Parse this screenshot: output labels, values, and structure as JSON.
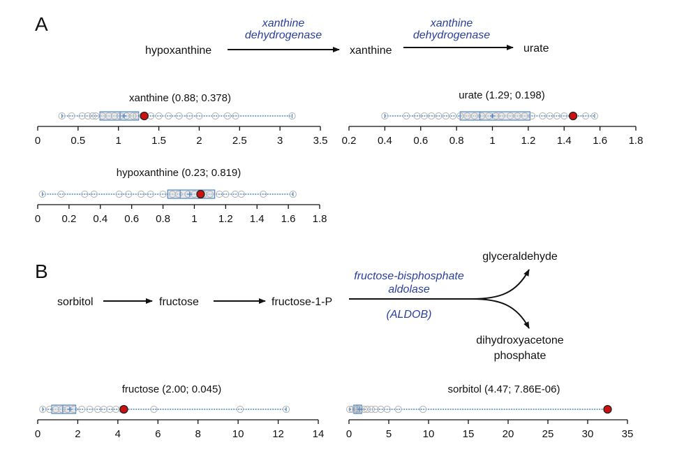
{
  "panels": {
    "A": {
      "label": "A",
      "pathway": {
        "nodes": [
          "hypoxanthine",
          "xanthine",
          "urate"
        ],
        "enzymes": [
          {
            "line1": "xanthine",
            "line2": "dehydrogenase"
          },
          {
            "line1": "xanthine",
            "line2": "dehydrogenase"
          }
        ]
      }
    },
    "B": {
      "label": "B",
      "pathway": {
        "nodes": [
          "sorbitol",
          "fructose",
          "fructose-1-P"
        ],
        "enzyme": {
          "line1": "fructose-bisphosphate",
          "line2": "aldolase",
          "line3": "(ALDOB)"
        },
        "products": [
          {
            "line1": "glyceraldehyde",
            "line2": ""
          },
          {
            "line1": "dihydroxyacetone",
            "line2": "phosphate"
          }
        ]
      }
    }
  },
  "colors": {
    "axis": "#111111",
    "box": "#4a86c8",
    "box_fill": "#d9d9d9",
    "points": "#b8b8b8",
    "highlight": "#cc1111"
  },
  "chart_data": [
    {
      "type": "box",
      "title": "xanthine (0.88; 0.378)",
      "xlim": [
        0,
        3.5
      ],
      "ticks": [
        0,
        0.5,
        1,
        1.5,
        2,
        2.5,
        3,
        3.5
      ],
      "tick_labels": [
        "0",
        "0.5",
        "1",
        "1.5",
        "2",
        "2.5",
        "3",
        "3.5"
      ],
      "whisker_min": 0.3,
      "q1": 0.77,
      "median": 1.02,
      "mean": 1.07,
      "q3": 1.25,
      "whisker_max": 3.15,
      "points": [
        0.3,
        0.42,
        0.55,
        0.62,
        0.68,
        0.72,
        0.8,
        0.88,
        0.95,
        1.02,
        1.1,
        1.18,
        1.22,
        1.3,
        1.4,
        1.5,
        1.62,
        1.75,
        1.88,
        2.0,
        2.2,
        2.35,
        2.45,
        3.15
      ],
      "highlight": 1.32
    },
    {
      "type": "box",
      "title": "urate (1.29; 0.198)",
      "xlim": [
        0.2,
        1.8
      ],
      "ticks": [
        0.2,
        0.4,
        0.6,
        0.8,
        1.0,
        1.2,
        1.4,
        1.6,
        1.8
      ],
      "tick_labels": [
        "0.2",
        "0.4",
        "0.6",
        "0.8",
        "1",
        "1.2",
        "1.4",
        "1.6",
        "1.8"
      ],
      "whisker_min": 0.4,
      "q1": 0.82,
      "median": 0.93,
      "mean": 1.0,
      "q3": 1.21,
      "whisker_max": 1.57,
      "points": [
        0.4,
        0.52,
        0.58,
        0.62,
        0.66,
        0.7,
        0.74,
        0.78,
        0.82,
        0.86,
        0.9,
        0.94,
        0.98,
        1.02,
        1.05,
        1.1,
        1.14,
        1.18,
        1.22,
        1.28,
        1.32,
        1.36,
        1.4,
        1.52,
        1.57
      ],
      "highlight": 1.45
    },
    {
      "type": "box",
      "title": "hypoxanthine (0.23; 0.819)",
      "xlim": [
        0,
        1.8
      ],
      "ticks": [
        0,
        0.2,
        0.4,
        0.6,
        0.8,
        1.0,
        1.2,
        1.4,
        1.6,
        1.8
      ],
      "tick_labels": [
        "0",
        "0.2",
        "0.4",
        "0.6",
        "0.8",
        "1",
        "1.2",
        "1.4",
        "1.6",
        "1.8"
      ],
      "whisker_min": 0.03,
      "q1": 0.83,
      "median": 0.91,
      "mean": 0.97,
      "q3": 1.13,
      "whisker_max": 1.63,
      "points": [
        0.03,
        0.15,
        0.3,
        0.36,
        0.52,
        0.58,
        0.66,
        0.72,
        0.8,
        0.86,
        0.9,
        0.96,
        1.0,
        1.06,
        1.1,
        1.16,
        1.2,
        1.26,
        1.3,
        1.44,
        1.63
      ],
      "highlight": 1.04
    },
    {
      "type": "box",
      "title": "fructose (2.00; 0.045)",
      "xlim": [
        0,
        14
      ],
      "ticks": [
        0,
        2,
        4,
        6,
        8,
        10,
        12,
        14
      ],
      "tick_labels": [
        "0",
        "2",
        "4",
        "6",
        "8",
        "10",
        "12",
        "14"
      ],
      "whisker_min": 0.25,
      "q1": 0.7,
      "median": 1.25,
      "mean": 1.6,
      "q3": 1.9,
      "whisker_max": 12.4,
      "points": [
        0.25,
        0.6,
        0.9,
        1.2,
        1.5,
        1.8,
        2.2,
        2.6,
        3.0,
        3.3,
        3.6,
        3.9,
        4.2,
        5.8,
        10.1,
        12.4
      ],
      "highlight": 4.3
    },
    {
      "type": "box",
      "title": "sorbitol (4.47; 7.86E-06)",
      "xlim": [
        0,
        35
      ],
      "ticks": [
        0,
        5,
        10,
        15,
        20,
        25,
        30,
        35
      ],
      "tick_labels": [
        "0",
        "5",
        "10",
        "15",
        "20",
        "25",
        "30",
        "35"
      ],
      "whisker_min": 0.1,
      "q1": 0.6,
      "median": 1.0,
      "mean": 1.3,
      "q3": 1.6,
      "whisker_max": 32.5,
      "points": [
        0.1,
        0.4,
        0.8,
        1.1,
        1.4,
        1.9,
        2.3,
        2.8,
        3.3,
        4.0,
        4.8,
        6.2,
        9.3
      ],
      "highlight": 32.5
    }
  ]
}
